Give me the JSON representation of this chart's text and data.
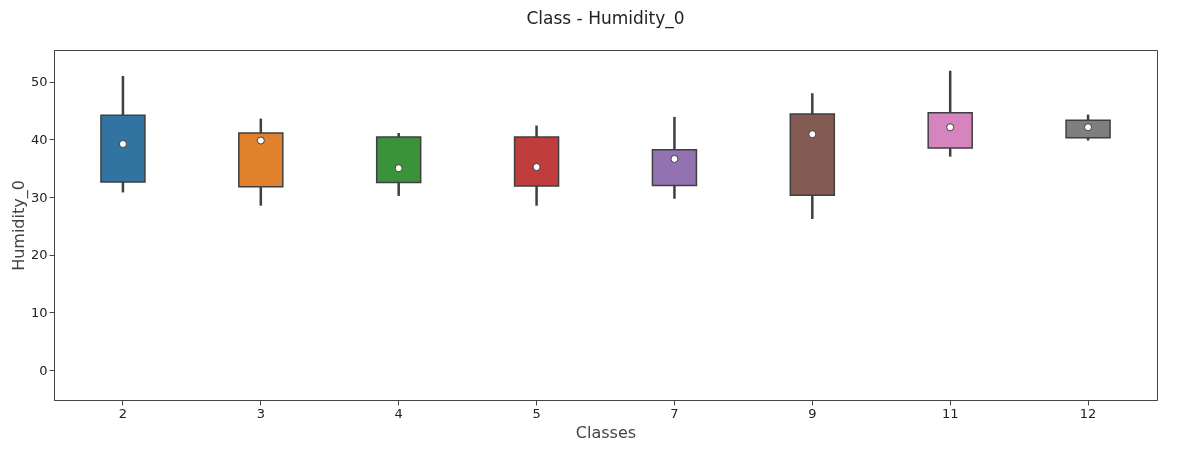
{
  "chart_data": {
    "type": "box",
    "title": "Class - Humidity_0",
    "xlabel": "Classes",
    "ylabel": "Humidity_0",
    "categories": [
      "2",
      "3",
      "4",
      "5",
      "7",
      "9",
      "11",
      "12"
    ],
    "colors": [
      "#3274a1",
      "#e1812c",
      "#3a923a",
      "#c03d3e",
      "#9372b2",
      "#845b53",
      "#d684bd",
      "#7f7f7f"
    ],
    "boxes": [
      {
        "low": 30.8,
        "q1": 32.6,
        "median": 39.2,
        "q3": 44.2,
        "high": 51
      },
      {
        "low": 28.5,
        "q1": 31.8,
        "median": 39.8,
        "q3": 41.1,
        "high": 43.6
      },
      {
        "low": 30.2,
        "q1": 32.5,
        "median": 35,
        "q3": 40.4,
        "high": 41.1
      },
      {
        "low": 28.5,
        "q1": 31.9,
        "median": 35.2,
        "q3": 40.4,
        "high": 42.4
      },
      {
        "low": 29.7,
        "q1": 32,
        "median": 36.6,
        "q3": 38.2,
        "high": 43.9
      },
      {
        "low": 26.2,
        "q1": 30.3,
        "median": 40.9,
        "q3": 44.4,
        "high": 48
      },
      {
        "low": 37,
        "q1": 38.5,
        "median": 42.1,
        "q3": 44.6,
        "high": 51.9
      },
      {
        "low": 39.8,
        "q1": 40.3,
        "median": 42.1,
        "q3": 43.3,
        "high": 44.3
      }
    ],
    "ylim": [
      -5.2,
      55.5
    ],
    "yticks": [
      0,
      10,
      20,
      30,
      40,
      50
    ]
  }
}
